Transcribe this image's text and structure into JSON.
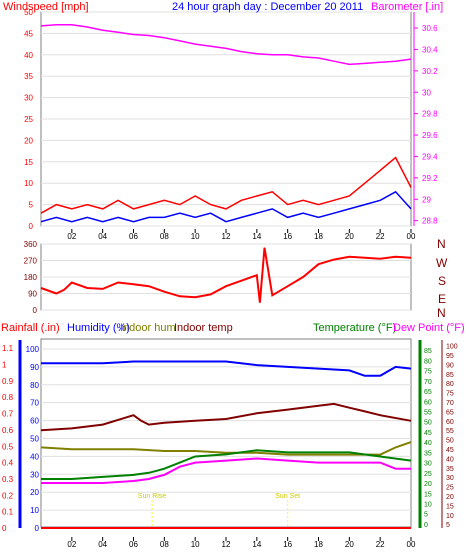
{
  "chart_data": [
    {
      "type": "line",
      "title": "24 hour graph day : December 20 2011",
      "left_axis_label": "Windspeed [mph]",
      "right_axis_label": "Barometer [.in]",
      "x_tick_labels": [
        "02",
        "04",
        "06",
        "08",
        "10",
        "12",
        "14",
        "16",
        "18",
        "20",
        "22",
        "00"
      ],
      "left_ticks": [
        0,
        5,
        10,
        15,
        20,
        25,
        30,
        35,
        40,
        45,
        50
      ],
      "right_ticks": [
        "28.8",
        "29",
        "29.2",
        "29.4",
        "29.6",
        "29.8",
        "30",
        "30.2",
        "30.4",
        "30.6"
      ],
      "ylim_left": [
        0,
        50
      ],
      "ylim_right": [
        28.75,
        30.75
      ],
      "series": [
        {
          "axis": "right",
          "color": "#ff00ff",
          "x": [
            0,
            1,
            2,
            3,
            4,
            5,
            6,
            7,
            8,
            9,
            10,
            11,
            12,
            13,
            14,
            15,
            16,
            17,
            18,
            19,
            20,
            21,
            22,
            23,
            24
          ],
          "values": [
            30.62,
            30.63,
            30.63,
            30.61,
            30.58,
            30.56,
            30.54,
            30.53,
            30.51,
            30.48,
            30.45,
            30.43,
            30.41,
            30.38,
            30.36,
            30.35,
            30.35,
            30.33,
            30.32,
            30.29,
            30.26,
            30.27,
            30.28,
            30.29,
            30.31
          ]
        },
        {
          "axis": "left",
          "color": "#ff0000",
          "x": [
            0,
            1,
            2,
            3,
            4,
            5,
            6,
            7,
            8,
            9,
            10,
            11,
            12,
            13,
            14,
            15,
            16,
            17,
            18,
            19,
            20,
            21,
            22,
            23,
            24
          ],
          "values": [
            3,
            5,
            4,
            5,
            4,
            6,
            4,
            5,
            6,
            5,
            7,
            5,
            4,
            6,
            7,
            8,
            5,
            6,
            5,
            6,
            7,
            10,
            13,
            16,
            9
          ]
        },
        {
          "axis": "left",
          "color": "#0000ff",
          "x": [
            0,
            1,
            2,
            3,
            4,
            5,
            6,
            7,
            8,
            9,
            10,
            11,
            12,
            13,
            14,
            15,
            16,
            17,
            18,
            19,
            20,
            21,
            22,
            23,
            24
          ],
          "values": [
            1,
            2,
            1,
            2,
            1,
            2,
            1,
            2,
            2,
            3,
            2,
            3,
            1,
            2,
            3,
            4,
            2,
            3,
            2,
            3,
            4,
            5,
            6,
            8,
            4
          ]
        }
      ]
    },
    {
      "type": "line",
      "left_ticks": [
        0,
        90,
        180,
        270,
        360
      ],
      "compass_labels": [
        "N",
        "W",
        "S",
        "E",
        "N"
      ],
      "ylim": [
        0,
        360
      ],
      "series": [
        {
          "color": "#ff0000",
          "x": [
            0,
            1,
            1.5,
            2,
            3,
            4,
            5,
            6,
            7,
            8,
            9,
            10,
            11,
            12,
            13,
            14,
            14.2,
            14.5,
            15,
            16,
            17,
            18,
            19,
            20,
            21,
            22,
            23,
            24
          ],
          "values": [
            120,
            90,
            110,
            150,
            120,
            115,
            150,
            140,
            130,
            100,
            75,
            70,
            85,
            130,
            160,
            190,
            40,
            340,
            80,
            130,
            180,
            250,
            275,
            290,
            285,
            280,
            290,
            285
          ]
        }
      ]
    },
    {
      "type": "line",
      "labels": [
        "Rainfall (.in)",
        "Humidity (%)",
        "Indoor hum",
        "Indoor temp",
        "Temperature (°F)",
        "Dew Point (°F)"
      ],
      "rain_ticks": [
        "0",
        "0.1",
        "0.2",
        "0.3",
        "0.4",
        "0.5",
        "0.6",
        "0.7",
        "0.8",
        "0.9",
        "1",
        "1.1"
      ],
      "hum_ticks": [
        0,
        10,
        20,
        30,
        40,
        50,
        60,
        70,
        80,
        90,
        100
      ],
      "temp_ticks": [
        0,
        5,
        10,
        15,
        20,
        25,
        30,
        35,
        40,
        45,
        50,
        55,
        60,
        65,
        70,
        75,
        80,
        85
      ],
      "dew_ticks": [
        5,
        10,
        15,
        20,
        25,
        30,
        35,
        40,
        45,
        50,
        55,
        60,
        65,
        70,
        75,
        80,
        85,
        90,
        95,
        100
      ],
      "x_tick_labels": [
        "02",
        "04",
        "06",
        "08",
        "10",
        "12",
        "14",
        "16",
        "18",
        "20",
        "22",
        "00"
      ],
      "markers": [
        {
          "x": 7.2,
          "label": "Sun Rise"
        },
        {
          "x": 16.0,
          "label": "Sun Set"
        }
      ],
      "series": [
        {
          "name": "Humidity (%)",
          "color": "#0000ff",
          "scale": "percent",
          "x": [
            0,
            2,
            4,
            6,
            8,
            10,
            12,
            14,
            16,
            18,
            20,
            21,
            22,
            23,
            24
          ],
          "values": [
            92,
            92,
            92,
            93,
            93,
            93,
            93,
            91,
            90,
            89,
            88,
            85,
            85,
            90,
            89
          ]
        },
        {
          "name": "Indoor hum",
          "color": "#808000",
          "scale": "percent",
          "x": [
            0,
            2,
            4,
            6,
            8,
            10,
            12,
            14,
            16,
            18,
            20,
            22,
            23,
            24
          ],
          "values": [
            45,
            44,
            44,
            44,
            43,
            43,
            42,
            42,
            41,
            41,
            41,
            41,
            45,
            48
          ]
        },
        {
          "name": "Indoor temp",
          "color": "#800000",
          "scale": "dew",
          "x": [
            0,
            2,
            4,
            6,
            6.5,
            7,
            8,
            10,
            12,
            14,
            16,
            18,
            19,
            20,
            21,
            22,
            24
          ],
          "values": [
            55,
            56,
            58,
            63,
            60,
            58,
            59,
            60,
            61,
            64,
            66,
            68,
            69,
            67,
            65,
            63,
            60
          ]
        },
        {
          "name": "Temperature (°F)",
          "color": "#008000",
          "scale": "temp",
          "x": [
            0,
            2,
            4,
            6,
            7,
            7.5,
            8,
            9,
            10,
            12,
            14,
            16,
            18,
            20,
            22,
            24
          ],
          "values": [
            22,
            22,
            23,
            24,
            25,
            26,
            27,
            30,
            33,
            34,
            36,
            35,
            35,
            35,
            33,
            31
          ]
        },
        {
          "name": "Dew Point (°F)",
          "color": "#ff00ff",
          "scale": "temp",
          "x": [
            0,
            2,
            4,
            6,
            7,
            7.5,
            8,
            9,
            10,
            12,
            14,
            16,
            18,
            20,
            22,
            23,
            24
          ],
          "values": [
            20,
            20,
            20,
            21,
            22,
            23,
            24,
            28,
            30,
            31,
            32,
            31,
            30,
            30,
            30,
            27,
            27
          ]
        },
        {
          "name": "Rainfall (.in)",
          "color": "#ff0000",
          "scale": "rain",
          "x": [
            0,
            24
          ],
          "values": [
            0,
            0
          ]
        }
      ]
    }
  ]
}
